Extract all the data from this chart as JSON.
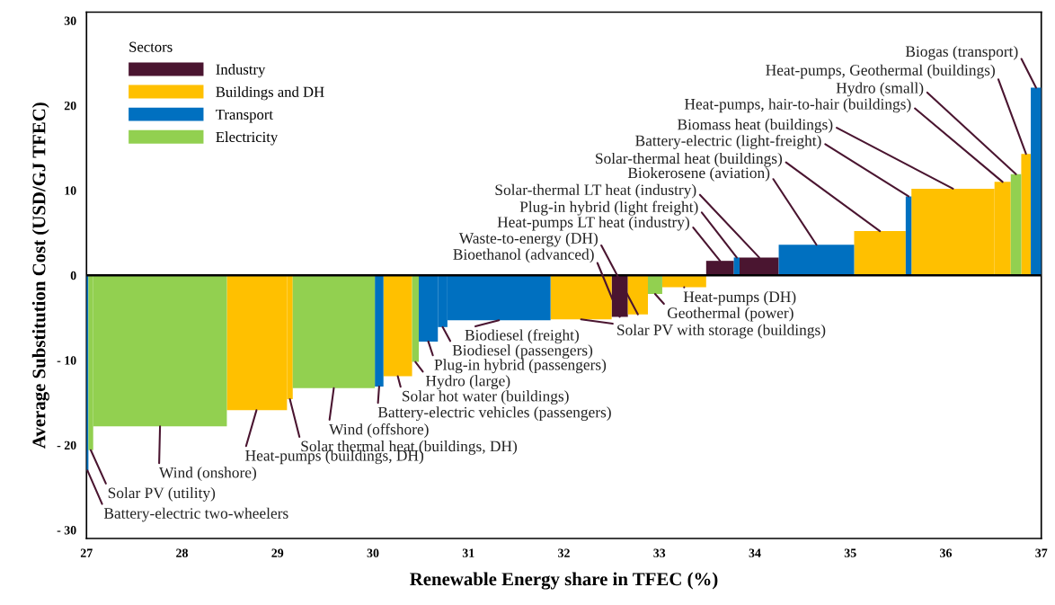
{
  "chart_data": {
    "type": "histogram",
    "xlabel": "Renewable Energy share in TFEC (%)",
    "ylabel": "Average Substitution Cost (USD/GJ TFEC)",
    "legend_title": "Sectors",
    "legend": "top left",
    "grid": false,
    "bins": [
      27,
      27.02,
      27.07,
      28.47,
      29.1,
      29.16,
      30.02,
      30.11,
      30.41,
      30.48,
      30.68,
      30.78,
      31.86,
      32.5,
      32.67,
      32.88,
      33.03,
      33.49,
      33.78,
      33.84,
      34.25,
      35.04,
      35.58,
      35.64,
      36.51,
      36.68,
      36.79,
      36.89,
      37.0
    ],
    "series": [
      {
        "name": "Industry",
        "color": "#4a1530",
        "values": [
          null,
          null,
          null,
          null,
          null,
          null,
          null,
          null,
          null,
          null,
          null,
          null,
          null,
          -4.9,
          null,
          null,
          null,
          1.7,
          null,
          2.1,
          null,
          null,
          null,
          null,
          null,
          null,
          null,
          null
        ]
      },
      {
        "name": "Buildings and DH",
        "color": "#ffc000",
        "values": [
          null,
          null,
          null,
          -15.9,
          -14.6,
          null,
          null,
          -11.9,
          null,
          null,
          null,
          null,
          -5.2,
          null,
          -4.6,
          null,
          -1.4,
          null,
          null,
          null,
          null,
          5.2,
          null,
          10.2,
          11.0,
          null,
          14.3,
          null
        ]
      },
      {
        "name": "Transport",
        "color": "#0070c0",
        "values": [
          -23.0,
          null,
          null,
          null,
          null,
          null,
          -13.1,
          null,
          null,
          -7.8,
          -6.1,
          -5.3,
          null,
          null,
          null,
          null,
          null,
          null,
          2.1,
          null,
          3.6,
          null,
          9.3,
          null,
          null,
          null,
          null,
          22.1
        ]
      },
      {
        "name": "Electricity",
        "color": "#92d050",
        "values": [
          null,
          -20.6,
          -17.8,
          null,
          null,
          -13.3,
          null,
          null,
          -10.2,
          null,
          null,
          null,
          null,
          null,
          null,
          -2.2,
          null,
          null,
          null,
          null,
          null,
          null,
          null,
          null,
          null,
          11.9,
          null,
          null
        ]
      }
    ],
    "xlim": [
      27,
      37
    ],
    "ylim": [
      -31,
      31
    ],
    "xticks": [
      27,
      28,
      29,
      30,
      31,
      32,
      33,
      34,
      35,
      36,
      37
    ],
    "yticks": [
      {
        "value": -30,
        "label": "- 30"
      },
      {
        "value": -20,
        "label": "- 20"
      },
      {
        "value": -10,
        "label": "- 10"
      },
      0,
      10,
      20,
      30
    ],
    "ref_lines": [
      {
        "axis": "y",
        "value": 0,
        "color": "#000000"
      }
    ],
    "annotations": [
      {
        "text": "Battery-electric two-wheelers",
        "x": 27.01,
        "y": -23.0
      },
      {
        "text": "Solar PV (utility)",
        "x": 27.045,
        "y": -20.6
      },
      {
        "text": "Wind (onshore)",
        "x": 27.77,
        "y": -17.8
      },
      {
        "text": "Heat-pumps (buildings, DH)",
        "x": 28.78,
        "y": -15.9
      },
      {
        "text": "Solar thermal heat (buildings, DH)",
        "x": 29.13,
        "y": -14.6
      },
      {
        "text": "Wind (offshore)",
        "x": 29.59,
        "y": -13.3
      },
      {
        "text": "Battery-electric vehicles (passengers)",
        "x": 30.065,
        "y": -13.1
      },
      {
        "text": "Solar hot water (buildings)",
        "x": 30.26,
        "y": -11.9
      },
      {
        "text": "Hydro (large)",
        "x": 30.445,
        "y": -10.2
      },
      {
        "text": "Plug-in hybrid (passengers)",
        "x": 30.58,
        "y": -7.8
      },
      {
        "text": "Biodiesel (passengers)",
        "x": 30.73,
        "y": -6.1
      },
      {
        "text": "Biodiesel (freight)",
        "x": 31.32,
        "y": -5.3
      },
      {
        "text": "Solar PV with storage (buildings)",
        "x": 32.18,
        "y": -5.2
      },
      {
        "text": "Bioethanol (advanced)",
        "x": 32.585,
        "y": -4.9
      },
      {
        "text": "Waste-to-energy (DH)",
        "x": 32.775,
        "y": -4.6
      },
      {
        "text": "Geothermal (power)",
        "x": 32.955,
        "y": -2.2
      },
      {
        "text": "Heat-pumps (DH)",
        "x": 33.26,
        "y": -1.4
      },
      {
        "text": "Heat-pumps LT heat (industry)",
        "x": 33.635,
        "y": 1.7
      },
      {
        "text": "Plug-in hybrid (light freight)",
        "x": 33.81,
        "y": 2.1
      },
      {
        "text": "Solar-thermal LT heat (industry)",
        "x": 34.045,
        "y": 2.1
      },
      {
        "text": "Biokerosene (aviation)",
        "x": 34.645,
        "y": 3.6
      },
      {
        "text": "Solar-thermal heat (buildings)",
        "x": 35.31,
        "y": 5.2
      },
      {
        "text": "Battery-electric (light-freight)",
        "x": 35.61,
        "y": 9.3
      },
      {
        "text": "Biomass heat (buildings)",
        "x": 36.075,
        "y": 10.2
      },
      {
        "text": "Heat-pumps, hair-to-hair (buildings)",
        "x": 36.595,
        "y": 11.0
      },
      {
        "text": "Hydro (small)",
        "x": 36.735,
        "y": 11.9
      },
      {
        "text": "Heat-pumps, Geothermal (buildings)",
        "x": 36.84,
        "y": 14.3
      },
      {
        "text": "Biogas (transport)",
        "x": 36.945,
        "y": 22.1
      }
    ]
  }
}
